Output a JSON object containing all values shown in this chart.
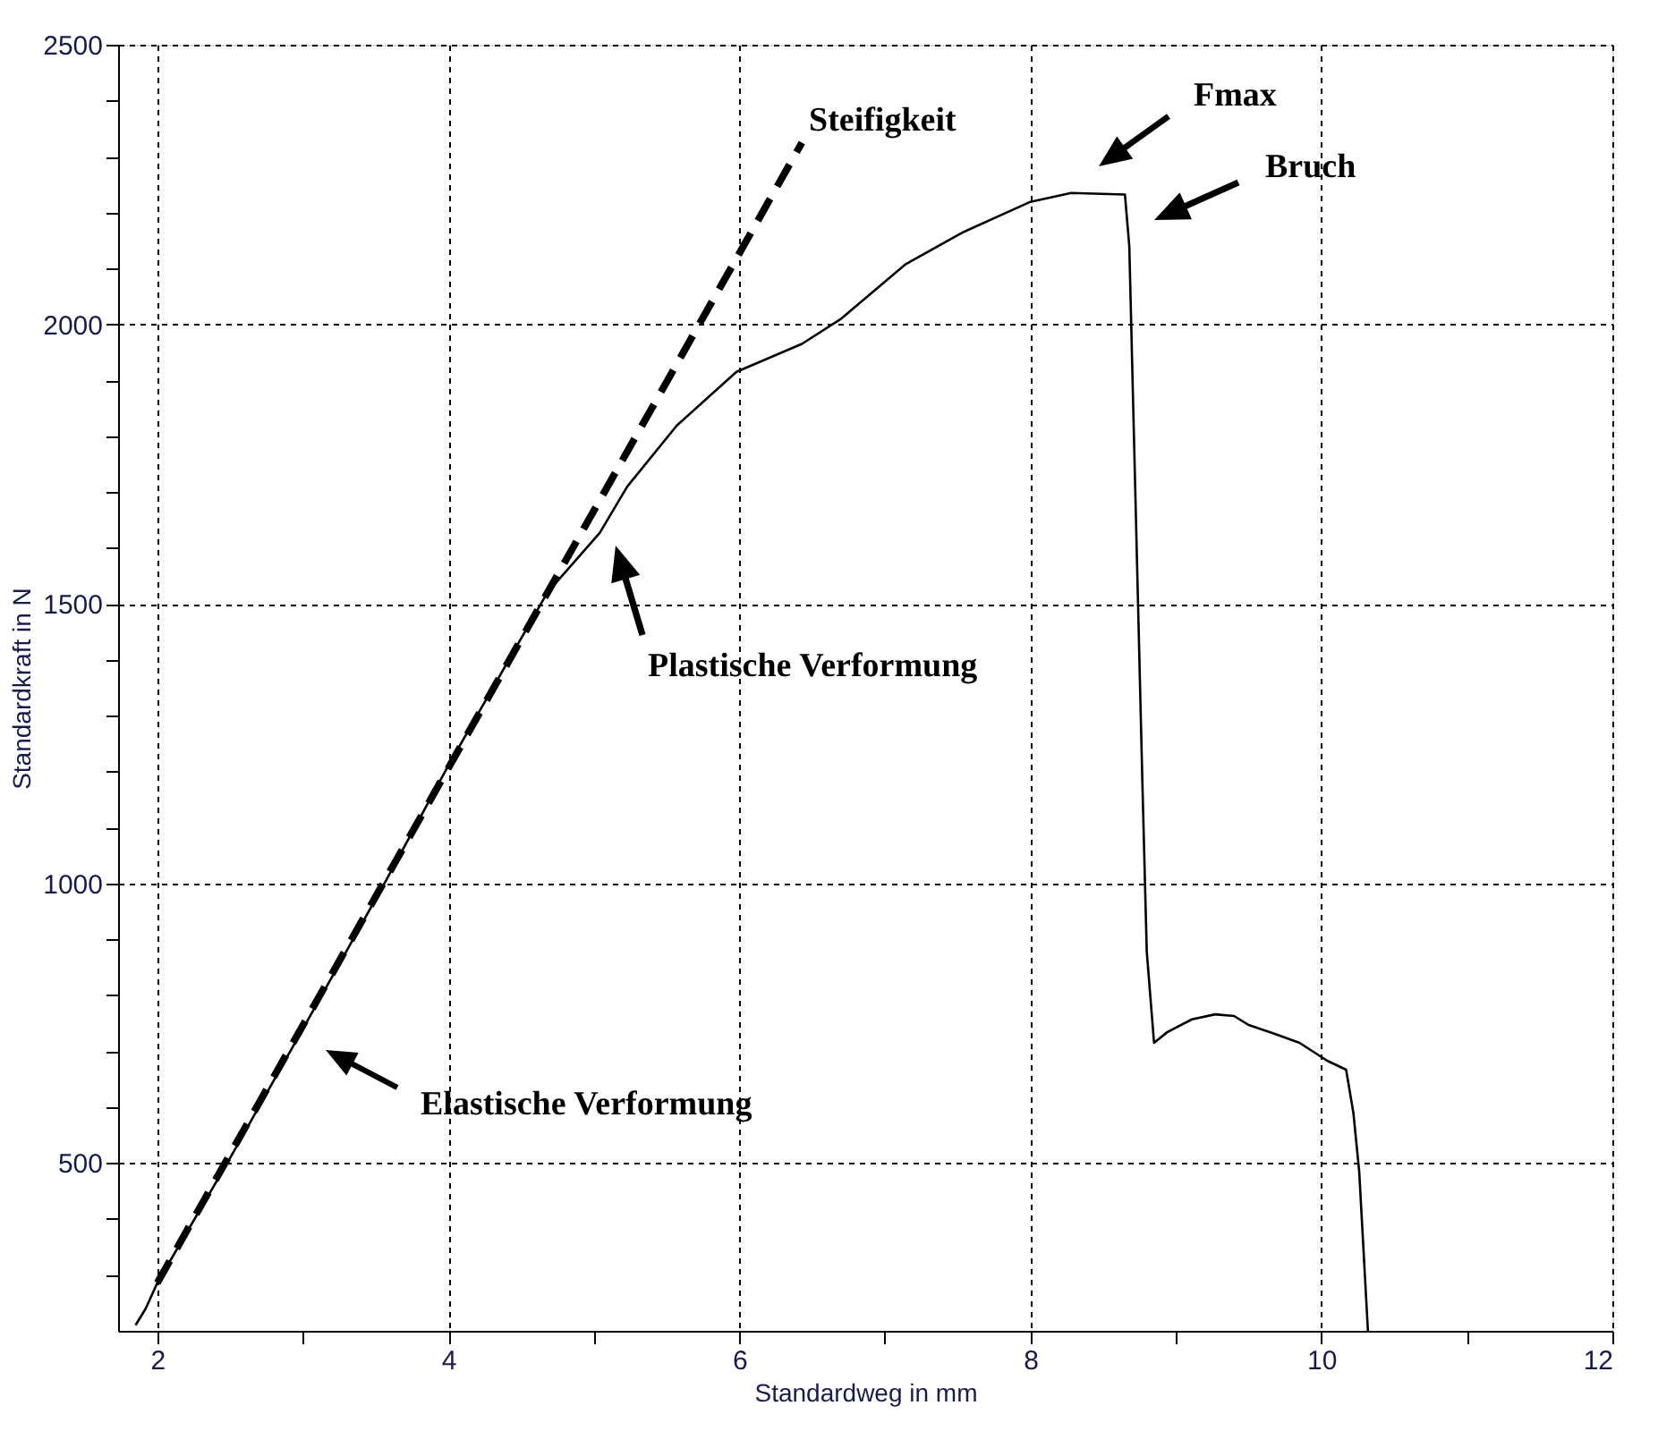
{
  "chart_data": {
    "type": "line",
    "xlabel": "Standardweg in mm",
    "ylabel": "Standardkraft in N",
    "xlim": [
      1.73,
      12
    ],
    "ylim": [
      200,
      2500
    ],
    "xticks": [
      2,
      {
        "value": 3,
        "label": null
      },
      4,
      {
        "value": 5,
        "label": null
      },
      6,
      {
        "value": 7,
        "label": null
      },
      8,
      {
        "value": 9,
        "label": null
      },
      10,
      {
        "value": 11,
        "label": null
      },
      12
    ],
    "yticks": [
      {
        "value": 300,
        "label": null
      },
      {
        "value": 400,
        "label": null
      },
      500,
      {
        "value": 600,
        "label": null
      },
      {
        "value": 700,
        "label": null
      },
      {
        "value": 800,
        "label": null
      },
      {
        "value": 900,
        "label": null
      },
      1000,
      {
        "value": 1100,
        "label": null
      },
      {
        "value": 1200,
        "label": null
      },
      {
        "value": 1300,
        "label": null
      },
      {
        "value": 1400,
        "label": null
      },
      1500,
      {
        "value": 1600,
        "label": null
      },
      {
        "value": 1700,
        "label": null
      },
      {
        "value": 1800,
        "label": null
      },
      {
        "value": 1900,
        "label": null
      },
      2000,
      {
        "value": 2100,
        "label": null
      },
      {
        "value": 2200,
        "label": null
      },
      {
        "value": 2300,
        "label": null
      },
      {
        "value": 2400,
        "label": null
      },
      2500
    ],
    "grid": true,
    "marker": "none",
    "series": [
      {
        "color": "#000000",
        "line_style": "solid",
        "x": [
          1.85,
          1.92,
          2.0,
          2.48,
          3.0,
          3.56,
          4.0,
          4.68,
          5.04,
          5.23,
          5.57,
          5.98,
          6.43,
          6.7,
          7.14,
          7.54,
          8.0,
          8.28,
          8.65,
          8.68,
          8.74,
          8.77,
          8.8,
          8.85,
          8.94,
          9.11,
          9.27,
          9.4,
          9.5,
          9.68,
          9.85,
          10.04,
          10.17,
          10.22,
          10.26,
          10.32
        ],
        "values": [
          210,
          240,
          286,
          500,
          740,
          1000,
          1211,
          1520,
          1627,
          1710,
          1819,
          1915,
          1965,
          2010,
          2107,
          2165,
          2219,
          2235,
          2232,
          2139,
          1500,
          1179,
          878,
          715,
          734,
          757,
          766,
          763,
          747,
          731,
          715,
          683,
          667,
          590,
          485,
          200
        ]
      },
      {
        "type": "line",
        "color": "#000000",
        "line_style": "dashed",
        "x": [
          2.0,
          6.43
        ],
        "values": [
          286,
          2325
        ]
      }
    ],
    "annotations": [
      "Steifigkeit",
      "Fmax",
      "Bruch",
      "Plastische Verformung",
      "Elastische Verformung"
    ]
  }
}
